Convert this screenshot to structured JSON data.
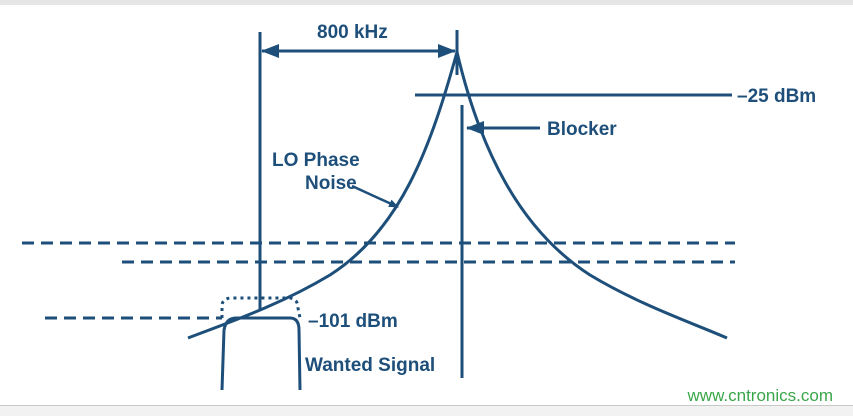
{
  "labels": {
    "spacing": "800 kHz",
    "blocker_level": "–25 dBm",
    "blocker": "Blocker",
    "phase_noise_line1": "LO Phase",
    "phase_noise_line2": "Noise",
    "wanted_level": "–101 dBm",
    "wanted": "Wanted Signal"
  },
  "watermark": "www.cntronics.com",
  "colors": {
    "stroke": "#1d4f7a",
    "watermark": "#3aa64a"
  }
}
